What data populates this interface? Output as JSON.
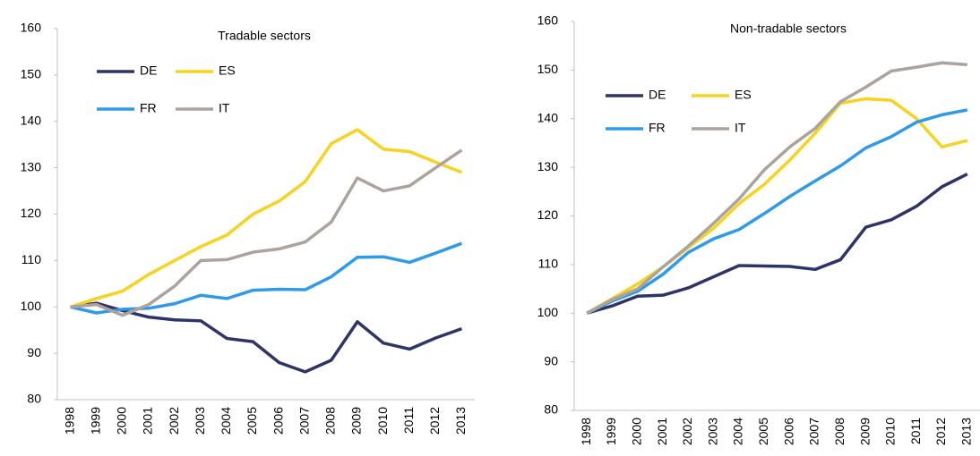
{
  "chart_data": [
    {
      "type": "line",
      "title": "Tradable sectors",
      "categories": [
        "1998",
        "1999",
        "2000",
        "2001",
        "2002",
        "2003",
        "2004",
        "2005",
        "2006",
        "2007",
        "2008",
        "2009",
        "2010",
        "2011",
        "2012",
        "2013"
      ],
      "ylim": [
        80,
        160
      ],
      "yticks": [
        80,
        90,
        100,
        110,
        120,
        130,
        140,
        150,
        160
      ],
      "series": [
        {
          "name": "DE",
          "color": "#2e3468",
          "values": [
            100,
            100.8,
            99.2,
            97.8,
            97.2,
            97,
            93.2,
            92.5,
            88,
            86,
            88.5,
            96.8,
            92.2,
            90.9,
            93.3,
            95.3
          ]
        },
        {
          "name": "ES",
          "color": "#f7d31f",
          "values": [
            100,
            101.8,
            103.4,
            107,
            110,
            113,
            115.5,
            120,
            122.8,
            127,
            135.2,
            138.2,
            134,
            133.5,
            131.2,
            129
          ]
        },
        {
          "name": "FR",
          "color": "#2f9be8",
          "values": [
            100,
            98.7,
            99.5,
            99.7,
            100.7,
            102.5,
            101.8,
            103.6,
            103.8,
            103.7,
            106.5,
            110.7,
            110.8,
            109.6,
            111.6,
            113.7
          ]
        },
        {
          "name": "IT",
          "color": "#aca49c",
          "values": [
            100,
            100.5,
            98.2,
            100.5,
            104.5,
            110,
            110.2,
            111.8,
            112.5,
            114,
            118.3,
            127.8,
            125,
            126.1,
            130,
            133.8
          ]
        }
      ]
    },
    {
      "type": "line",
      "title": "Non-tradable sectors",
      "categories": [
        "1998",
        "1999",
        "2000",
        "2001",
        "2002",
        "2003",
        "2004",
        "2005",
        "2006",
        "2007",
        "2008",
        "2009",
        "2010",
        "2011",
        "2012",
        "2013"
      ],
      "ylim": [
        80,
        160
      ],
      "yticks": [
        80,
        90,
        100,
        110,
        120,
        130,
        140,
        150,
        160
      ],
      "series": [
        {
          "name": "DE",
          "color": "#2e3468",
          "values": [
            100,
            101.5,
            103.5,
            103.7,
            105.2,
            107.5,
            109.8,
            109.7,
            109.6,
            109,
            111,
            117.7,
            119.2,
            122,
            126,
            128.6
          ]
        },
        {
          "name": "ES",
          "color": "#f7d31f",
          "values": [
            100,
            103,
            106,
            109.5,
            113.5,
            117.5,
            122.5,
            126.5,
            131.5,
            137,
            143.2,
            144.1,
            143.8,
            140,
            134.2,
            135.5
          ]
        },
        {
          "name": "FR",
          "color": "#2f9be8",
          "values": [
            100,
            102.5,
            104.5,
            108,
            112.5,
            115.3,
            117.2,
            120.5,
            124,
            127.2,
            130.3,
            134,
            136.3,
            139.3,
            140.8,
            141.8
          ]
        },
        {
          "name": "IT",
          "color": "#aca49c",
          "values": [
            100,
            102.8,
            105,
            109.5,
            113.8,
            118.5,
            123.5,
            129.5,
            134.2,
            138,
            143.5,
            146.5,
            149.8,
            150.6,
            151.5,
            151.1
          ]
        }
      ]
    }
  ]
}
